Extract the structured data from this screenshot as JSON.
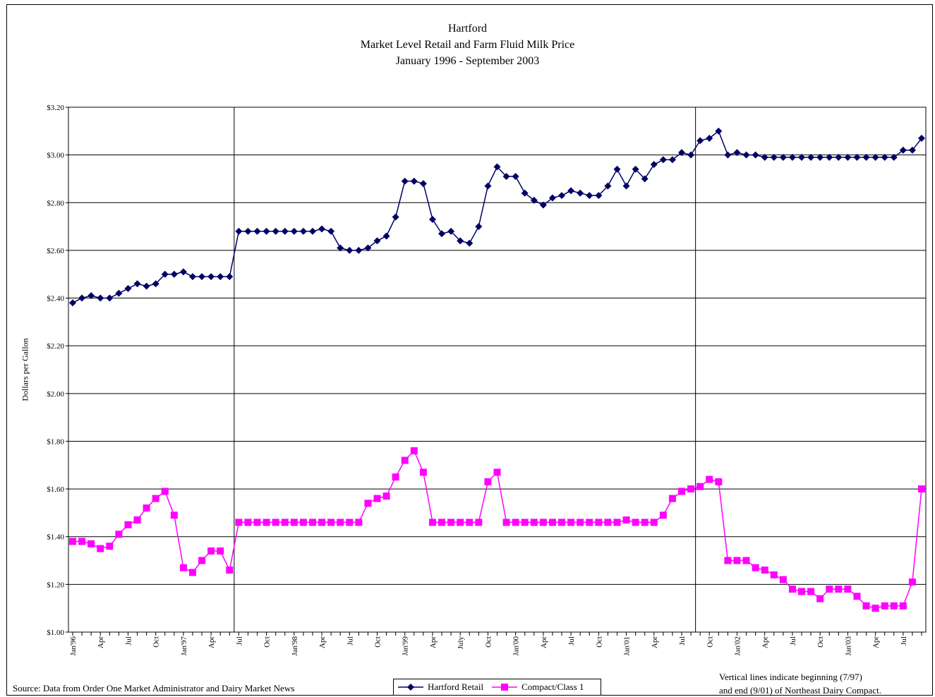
{
  "chart_data": {
    "type": "line",
    "title": [
      "Hartford",
      "Market Level Retail and Farm Fluid Milk Price",
      "January 1996 - September 2003"
    ],
    "ylabel": "Dollars per Gallon",
    "ylim": [
      1.0,
      3.2
    ],
    "yticks": [
      "$1.00",
      "$1.20",
      "$1.40",
      "$1.60",
      "$1.80",
      "$2.00",
      "$2.20",
      "$2.40",
      "$2.60",
      "$2.80",
      "$3.00",
      "$3.20"
    ],
    "xtick_labels": [
      {
        "month": 0,
        "label": "Jan'96"
      },
      {
        "month": 3,
        "label": "Apr"
      },
      {
        "month": 6,
        "label": "Jul"
      },
      {
        "month": 9,
        "label": "Oct"
      },
      {
        "month": 12,
        "label": "Jan'97"
      },
      {
        "month": 15,
        "label": "Apr"
      },
      {
        "month": 18,
        "label": "Jul"
      },
      {
        "month": 21,
        "label": "Oct"
      },
      {
        "month": 24,
        "label": "Jan'98"
      },
      {
        "month": 27,
        "label": "Apr"
      },
      {
        "month": 30,
        "label": "Jul"
      },
      {
        "month": 33,
        "label": "Oct"
      },
      {
        "month": 36,
        "label": "Jan'99"
      },
      {
        "month": 39,
        "label": "Apr"
      },
      {
        "month": 42,
        "label": "July"
      },
      {
        "month": 45,
        "label": "Oct"
      },
      {
        "month": 48,
        "label": "Jan'00"
      },
      {
        "month": 51,
        "label": "Apr"
      },
      {
        "month": 54,
        "label": "Jul"
      },
      {
        "month": 57,
        "label": "Oct"
      },
      {
        "month": 60,
        "label": "Jan'01"
      },
      {
        "month": 63,
        "label": "Apr"
      },
      {
        "month": 66,
        "label": "Jul"
      },
      {
        "month": 69,
        "label": "Oct"
      },
      {
        "month": 72,
        "label": "Jan'02"
      },
      {
        "month": 75,
        "label": "Apr"
      },
      {
        "month": 78,
        "label": "Jul"
      },
      {
        "month": 81,
        "label": "Oct"
      },
      {
        "month": 84,
        "label": "Jan'03"
      },
      {
        "month": 87,
        "label": "Apr"
      },
      {
        "month": 90,
        "label": "Jul"
      }
    ],
    "vertical_lines_months": [
      18,
      68
    ],
    "grid": true,
    "legend_position": "bottom-center",
    "series": [
      {
        "name": "Hartford Retail",
        "color": "#000066",
        "marker": "diamond",
        "values": [
          2.38,
          2.4,
          2.41,
          2.4,
          2.4,
          2.42,
          2.44,
          2.46,
          2.45,
          2.46,
          2.5,
          2.5,
          2.51,
          2.49,
          2.49,
          2.49,
          2.49,
          2.49,
          2.68,
          2.68,
          2.68,
          2.68,
          2.68,
          2.68,
          2.68,
          2.68,
          2.68,
          2.69,
          2.68,
          2.61,
          2.6,
          2.6,
          2.61,
          2.64,
          2.66,
          2.74,
          2.89,
          2.89,
          2.88,
          2.73,
          2.67,
          2.68,
          2.64,
          2.63,
          2.7,
          2.87,
          2.95,
          2.91,
          2.91,
          2.84,
          2.81,
          2.79,
          2.82,
          2.83,
          2.85,
          2.84,
          2.83,
          2.83,
          2.87,
          2.94,
          2.87,
          2.94,
          2.9,
          2.96,
          2.98,
          2.98,
          3.01,
          3.0,
          3.06,
          3.07,
          3.1,
          3.0,
          3.01,
          3.0,
          3.0,
          2.99,
          2.99,
          2.99,
          2.99,
          2.99,
          2.99,
          2.99,
          2.99,
          2.99,
          2.99,
          2.99,
          2.99,
          2.99,
          2.99,
          2.99,
          3.02,
          3.02,
          3.07
        ]
      },
      {
        "name": "Compact/Class 1",
        "color": "#ff00ff",
        "marker": "square",
        "values": [
          1.38,
          1.38,
          1.37,
          1.35,
          1.36,
          1.41,
          1.45,
          1.47,
          1.52,
          1.56,
          1.59,
          1.49,
          1.27,
          1.25,
          1.3,
          1.34,
          1.34,
          1.26,
          1.46,
          1.46,
          1.46,
          1.46,
          1.46,
          1.46,
          1.46,
          1.46,
          1.46,
          1.46,
          1.46,
          1.46,
          1.46,
          1.46,
          1.54,
          1.56,
          1.57,
          1.65,
          1.72,
          1.76,
          1.67,
          1.46,
          1.46,
          1.46,
          1.46,
          1.46,
          1.46,
          1.63,
          1.67,
          1.46,
          1.46,
          1.46,
          1.46,
          1.46,
          1.46,
          1.46,
          1.46,
          1.46,
          1.46,
          1.46,
          1.46,
          1.46,
          1.47,
          1.46,
          1.46,
          1.46,
          1.49,
          1.56,
          1.59,
          1.6,
          1.61,
          1.64,
          1.63,
          1.3,
          1.3,
          1.3,
          1.27,
          1.26,
          1.24,
          1.22,
          1.18,
          1.17,
          1.17,
          1.14,
          1.18,
          1.18,
          1.18,
          1.15,
          1.11,
          1.1,
          1.11,
          1.11,
          1.11,
          1.21,
          1.6
        ]
      }
    ]
  },
  "notes": {
    "source": "Source: Data from Order One Market Administrator and Dairy Market News",
    "compact_line1": "Vertical lines indicate beginning (7/97)",
    "compact_line2": "and end (9/01) of Northeast Dairy Compact."
  }
}
